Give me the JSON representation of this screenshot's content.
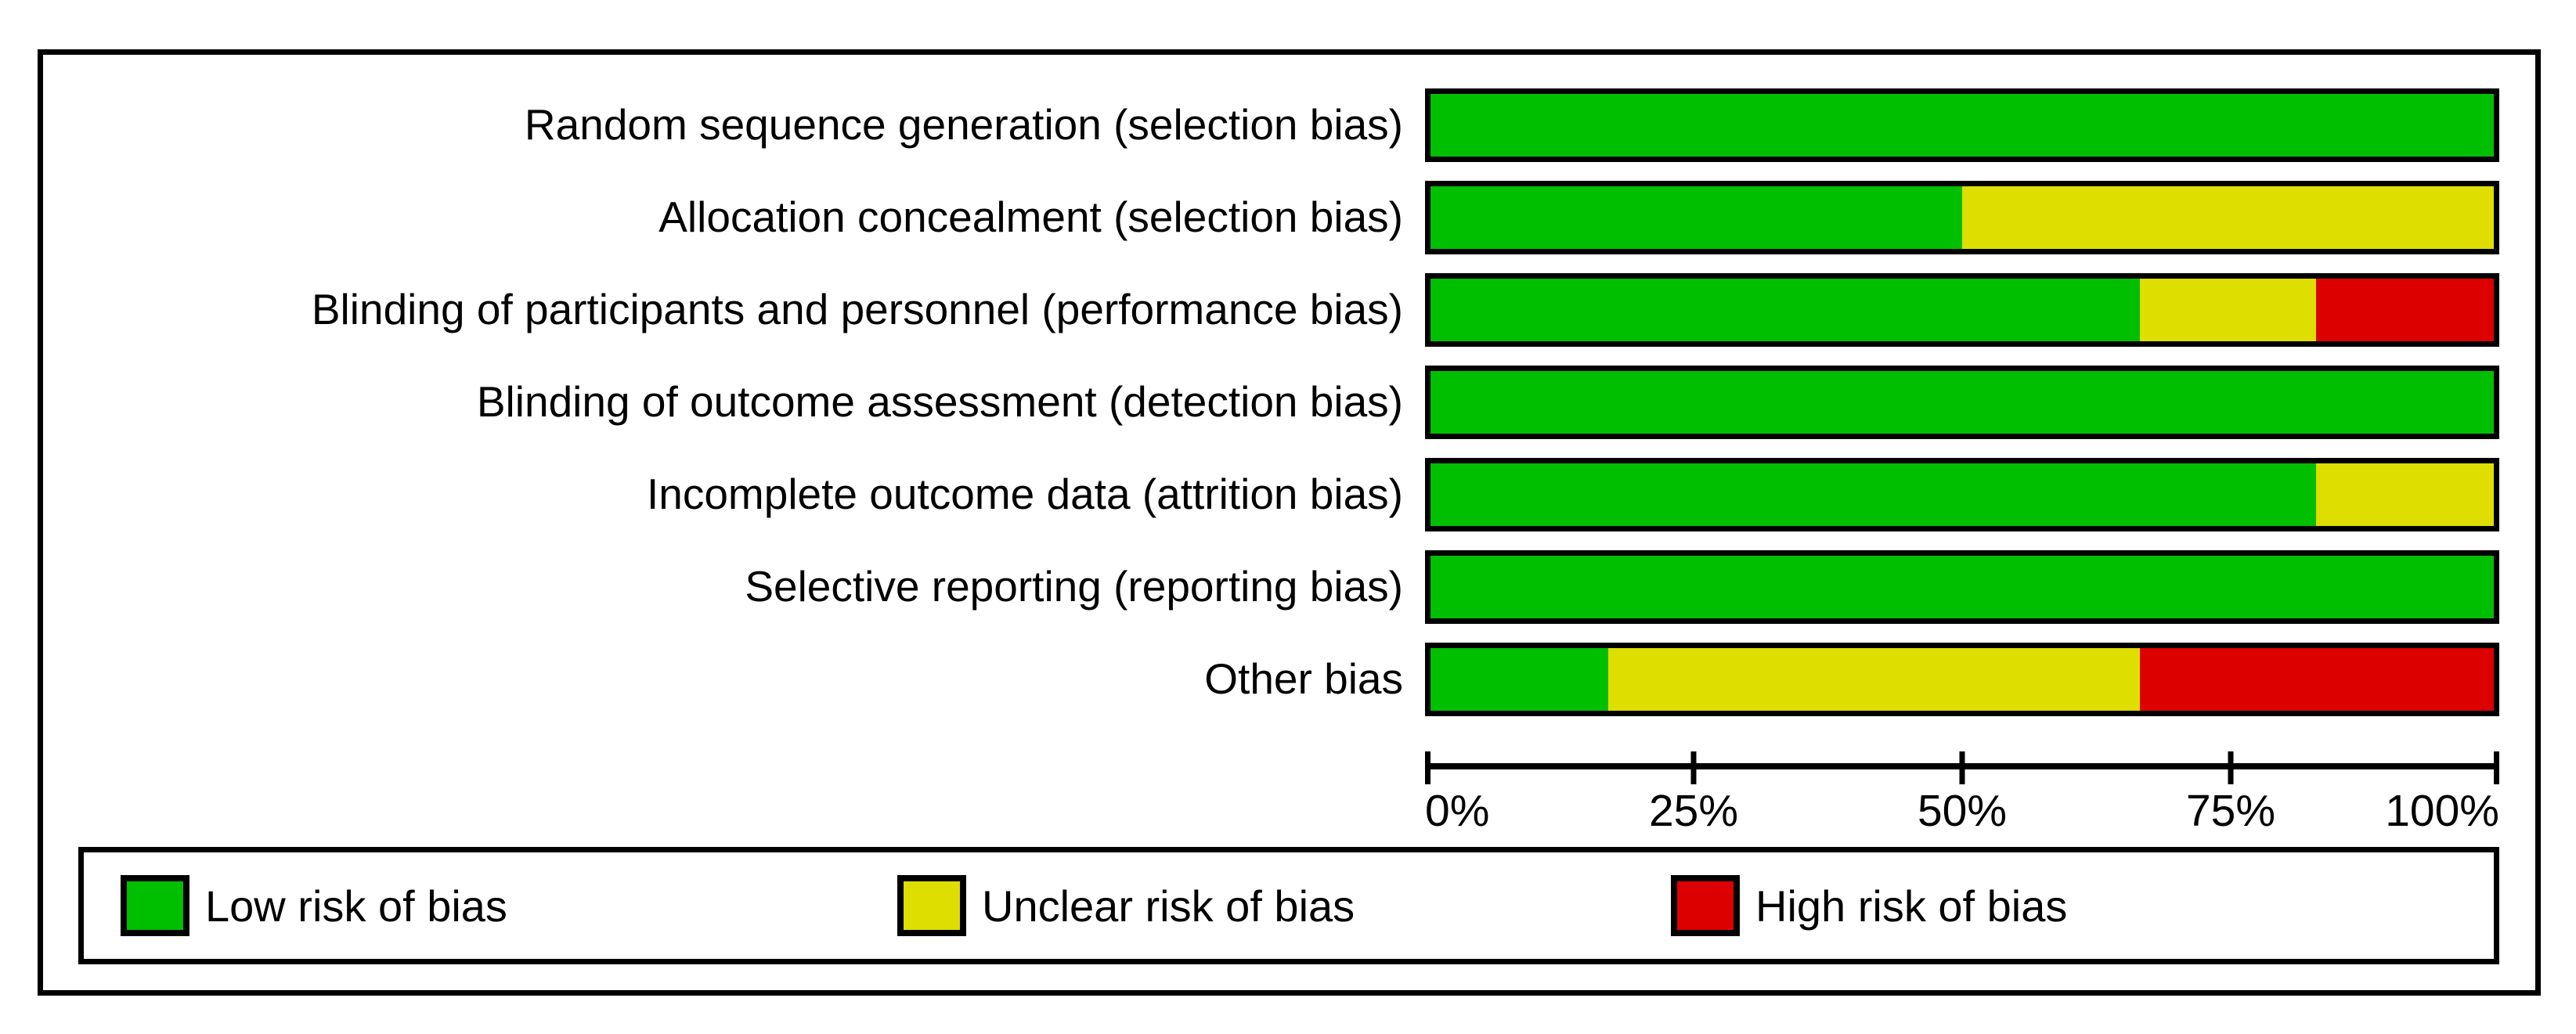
{
  "chart_data": {
    "type": "bar",
    "variant": "horizontal-stacked-percentage",
    "title": "",
    "categories": [
      "Random sequence generation (selection bias)",
      "Allocation concealment (selection bias)",
      "Blinding of participants and personnel (performance bias)",
      "Blinding of outcome assessment (detection bias)",
      "Incomplete outcome data (attrition bias)",
      "Selective reporting (reporting bias)",
      "Other bias"
    ],
    "series": [
      {
        "name": "Low risk of bias",
        "key": "low-risk",
        "color": "#00BE00",
        "values": [
          100,
          50,
          66.7,
          100,
          83.3,
          100,
          16.7
        ]
      },
      {
        "name": "Unclear risk of bias",
        "key": "unclear-risk",
        "color": "#DEDE00",
        "values": [
          0,
          50,
          16.6,
          0,
          16.7,
          0,
          50
        ]
      },
      {
        "name": "High risk of bias",
        "key": "high-risk",
        "color": "#DD0000",
        "values": [
          0,
          0,
          16.7,
          0,
          0,
          0,
          33.3
        ]
      }
    ],
    "xlim": [
      0,
      100
    ],
    "x_ticks": [
      "0%",
      "25%",
      "50%",
      "75%",
      "100%"
    ],
    "grid": false,
    "legend_position": "bottom",
    "bar_border_color": "#000000",
    "frame_border_color": "#000000",
    "background": "#FFFFFF"
  }
}
